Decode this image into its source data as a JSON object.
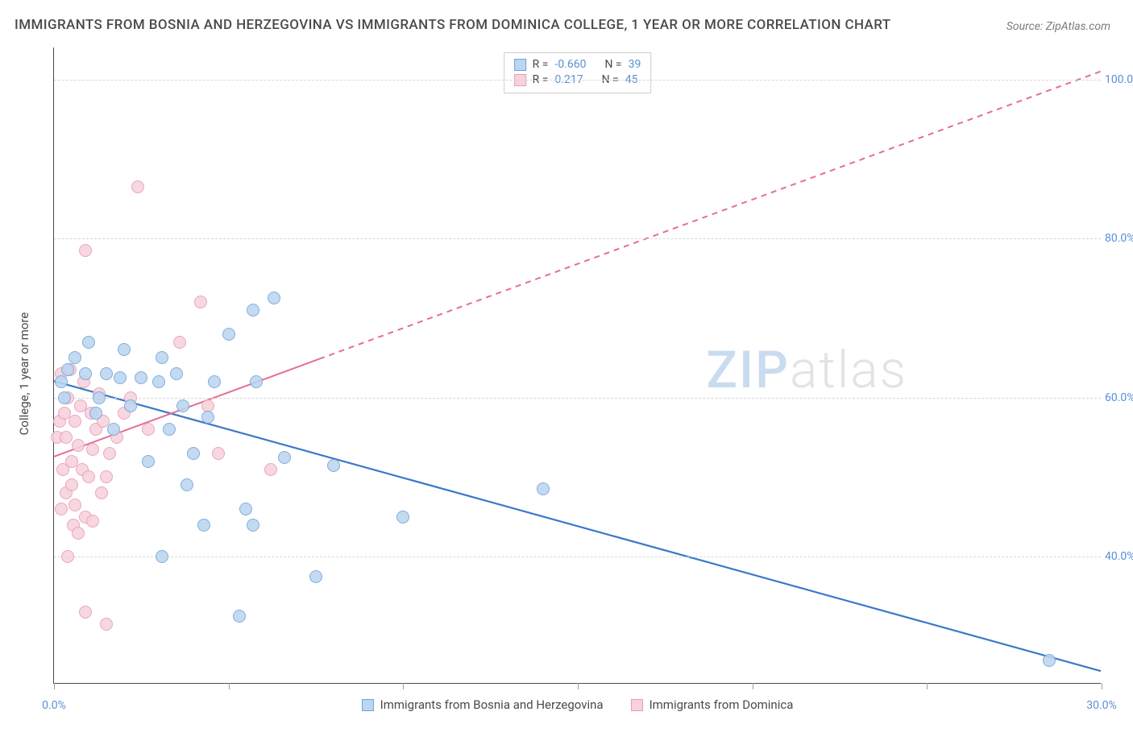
{
  "title": "IMMIGRANTS FROM BOSNIA AND HERZEGOVINA VS IMMIGRANTS FROM DOMINICA COLLEGE, 1 YEAR OR MORE CORRELATION CHART",
  "source": "Source: ZipAtlas.com",
  "yaxis_title": "College, 1 year or more",
  "watermark": {
    "zip": "ZIP",
    "atlas": "atlas"
  },
  "chart": {
    "type": "scatter",
    "xlim": [
      0,
      30
    ],
    "ylim": [
      24,
      104
    ],
    "xtick_positions": [
      0,
      5,
      10,
      15,
      20,
      25,
      30
    ],
    "xtick_labels": {
      "0": "0.0%",
      "30": "30.0%"
    },
    "ytick_positions": [
      40,
      60,
      80,
      100
    ],
    "ytick_labels": [
      "40.0%",
      "60.0%",
      "80.0%",
      "100.0%"
    ],
    "ytick_color": "#5b8fd6",
    "xlabel_color": "#5b8fd6",
    "grid_color": "#d8d8d8",
    "marker_size": 16,
    "marker_border": 1,
    "series": [
      {
        "name": "Immigrants from Bosnia and Herzegovina",
        "fill": "#bcd5f0",
        "stroke": "#6ea4db",
        "R": "-0.660",
        "N": "39",
        "trend": {
          "x1": 0,
          "y1": 62,
          "x2": 30,
          "y2": 25.5,
          "stroke": "#3b78c9",
          "width": 2.2,
          "dash": null
        },
        "points": [
          [
            0.2,
            62
          ],
          [
            0.3,
            60
          ],
          [
            0.4,
            63.5
          ],
          [
            0.6,
            65
          ],
          [
            0.9,
            63
          ],
          [
            1.0,
            67
          ],
          [
            1.2,
            58
          ],
          [
            1.3,
            60
          ],
          [
            1.5,
            63
          ],
          [
            1.7,
            56
          ],
          [
            1.9,
            62.5
          ],
          [
            2.0,
            66
          ],
          [
            2.2,
            59
          ],
          [
            2.5,
            62.5
          ],
          [
            2.7,
            52
          ],
          [
            3.0,
            62
          ],
          [
            3.1,
            40
          ],
          [
            3.1,
            65
          ],
          [
            3.3,
            56
          ],
          [
            3.5,
            63
          ],
          [
            3.7,
            59
          ],
          [
            3.8,
            49
          ],
          [
            4.0,
            53
          ],
          [
            4.3,
            44
          ],
          [
            4.4,
            57.5
          ],
          [
            4.6,
            62
          ],
          [
            5.0,
            68
          ],
          [
            5.3,
            32.5
          ],
          [
            5.5,
            46
          ],
          [
            5.7,
            44
          ],
          [
            5.8,
            62
          ],
          [
            5.7,
            71
          ],
          [
            6.3,
            72.5
          ],
          [
            6.6,
            52.5
          ],
          [
            7.5,
            37.5
          ],
          [
            8.0,
            51.5
          ],
          [
            10.0,
            45
          ],
          [
            14.0,
            48.5
          ],
          [
            28.5,
            27
          ]
        ]
      },
      {
        "name": "Immigrants from Dominica",
        "fill": "#f7d2dc",
        "stroke": "#e99bb1",
        "R": "0.217",
        "N": "45",
        "trend": {
          "x1": 0,
          "y1": 52.5,
          "x2": 30,
          "y2": 101,
          "stroke": "#e36f94",
          "width": 2.0,
          "dash": "7,6",
          "solid_until": 7.6
        },
        "points": [
          [
            0.1,
            55
          ],
          [
            0.15,
            57
          ],
          [
            0.2,
            46
          ],
          [
            0.2,
            63
          ],
          [
            0.25,
            51
          ],
          [
            0.3,
            58
          ],
          [
            0.35,
            48
          ],
          [
            0.35,
            55
          ],
          [
            0.4,
            40
          ],
          [
            0.4,
            60
          ],
          [
            0.45,
            63.5
          ],
          [
            0.5,
            49
          ],
          [
            0.5,
            52
          ],
          [
            0.55,
            44
          ],
          [
            0.6,
            57
          ],
          [
            0.6,
            46.5
          ],
          [
            0.7,
            54
          ],
          [
            0.7,
            43
          ],
          [
            0.75,
            59
          ],
          [
            0.8,
            51
          ],
          [
            0.85,
            62
          ],
          [
            0.9,
            45
          ],
          [
            0.9,
            33
          ],
          [
            0.9,
            78.5
          ],
          [
            1.0,
            50
          ],
          [
            1.05,
            58
          ],
          [
            1.1,
            53.5
          ],
          [
            1.1,
            44.5
          ],
          [
            1.2,
            56
          ],
          [
            1.3,
            60.5
          ],
          [
            1.35,
            48
          ],
          [
            1.4,
            57
          ],
          [
            1.5,
            50
          ],
          [
            1.5,
            31.5
          ],
          [
            1.6,
            53
          ],
          [
            1.8,
            55
          ],
          [
            2.0,
            58
          ],
          [
            2.2,
            60
          ],
          [
            2.4,
            86.5
          ],
          [
            2.7,
            56
          ],
          [
            3.6,
            67
          ],
          [
            4.2,
            72
          ],
          [
            4.4,
            59
          ],
          [
            4.7,
            53
          ],
          [
            6.2,
            51
          ]
        ]
      }
    ]
  },
  "legend_top": {
    "label_R": "R =",
    "label_N": "N ="
  },
  "legend_bottom": [
    {
      "label": "Immigrants from Bosnia and Herzegovina",
      "fill": "#bcd5f0",
      "stroke": "#6ea4db"
    },
    {
      "label": "Immigrants from Dominica",
      "fill": "#f7d2dc",
      "stroke": "#e99bb1"
    }
  ]
}
